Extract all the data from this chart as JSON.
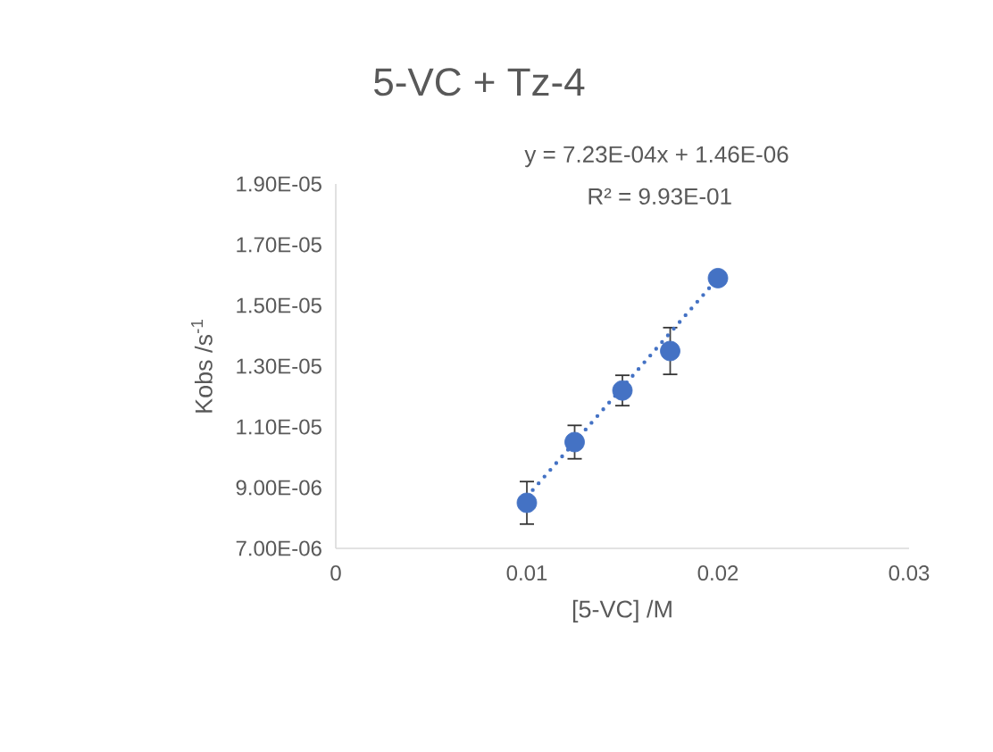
{
  "chart_data": {
    "type": "scatter",
    "title": "5-VC + Tz-4",
    "xlabel": "[5-VC] /M",
    "ylabel": "Kobs /s$^{-1}$",
    "annotations": [
      "y = 7.23E-04x + 1.46E-06",
      "R² = 9.93E-01"
    ],
    "series": [
      {
        "color": "#4472c4",
        "marker": "circle",
        "x": [
          0.01,
          0.0125,
          0.015,
          0.0175,
          0.02
        ],
        "values": [
          8.5e-06,
          1.05e-05,
          1.22e-05,
          1.35e-05,
          1.59e-05
        ],
        "errors": [
          7e-07,
          5.5e-07,
          5e-07,
          7.7e-07,
          null
        ]
      },
      {
        "type": "line",
        "color": "#4472c4",
        "marker": "none",
        "line_style": "dotted",
        "x": [
          0.01,
          0.02
        ],
        "values": [
          8.7e-06,
          1.59e-05
        ]
      }
    ],
    "xlim": [
      0,
      0.03
    ],
    "xticks": [
      0,
      0.01,
      0.02,
      0.03
    ],
    "ylim": [
      7e-06,
      1.9e-05
    ],
    "yticks": [
      {
        "value": 7e-06,
        "label": "7.00E-06"
      },
      {
        "value": 9e-06,
        "label": "9.00E-06"
      },
      {
        "value": 1.1e-05,
        "label": "1.10E-05"
      },
      {
        "value": 1.3e-05,
        "label": "1.30E-05"
      },
      {
        "value": 1.5e-05,
        "label": "1.50E-05"
      },
      {
        "value": 1.7e-05,
        "label": "1.70E-05"
      },
      {
        "value": 1.9e-05,
        "label": "1.90E-05"
      }
    ],
    "grid": false,
    "legend": false
  }
}
